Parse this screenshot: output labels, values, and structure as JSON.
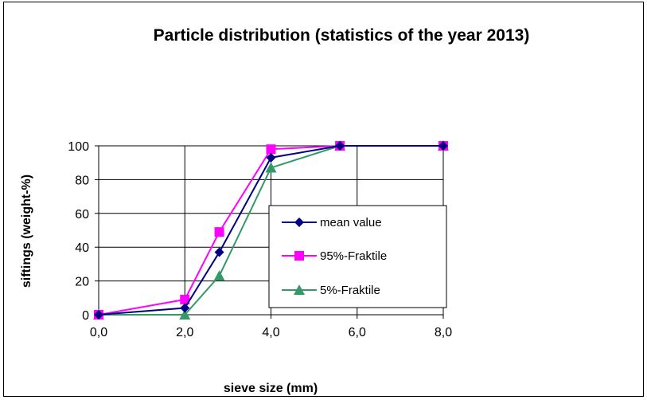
{
  "chart_data": {
    "type": "line",
    "title": "Particle distribution (statistics of the year 2013)",
    "xlabel": "sieve size (mm)",
    "ylabel": "siftings (weight-%)",
    "xlim": [
      0,
      8
    ],
    "ylim": [
      0,
      100
    ],
    "xticks": [
      0,
      2,
      4,
      6,
      8
    ],
    "xtick_labels": [
      "0,0",
      "2,0",
      "4,0",
      "6,0",
      "8,0"
    ],
    "yticks": [
      0,
      20,
      40,
      60,
      80,
      100
    ],
    "ytick_labels": [
      "0",
      "20",
      "40",
      "60",
      "80",
      "100"
    ],
    "grid": true,
    "legend_position": "right",
    "x": [
      0,
      2,
      2.8,
      4,
      5.6,
      8
    ],
    "series": [
      {
        "name": "mean value",
        "values": [
          0,
          4,
          37,
          93,
          100,
          100
        ],
        "color": "#000080",
        "marker": "diamond"
      },
      {
        "name": "95%-Fraktile",
        "values": [
          0,
          9,
          49,
          98,
          100,
          100
        ],
        "color": "#FF00FF",
        "marker": "square"
      },
      {
        "name": "5%-Fraktile",
        "values": [
          0,
          0,
          23,
          87,
          100,
          100
        ],
        "color": "#339966",
        "marker": "triangle"
      }
    ]
  }
}
